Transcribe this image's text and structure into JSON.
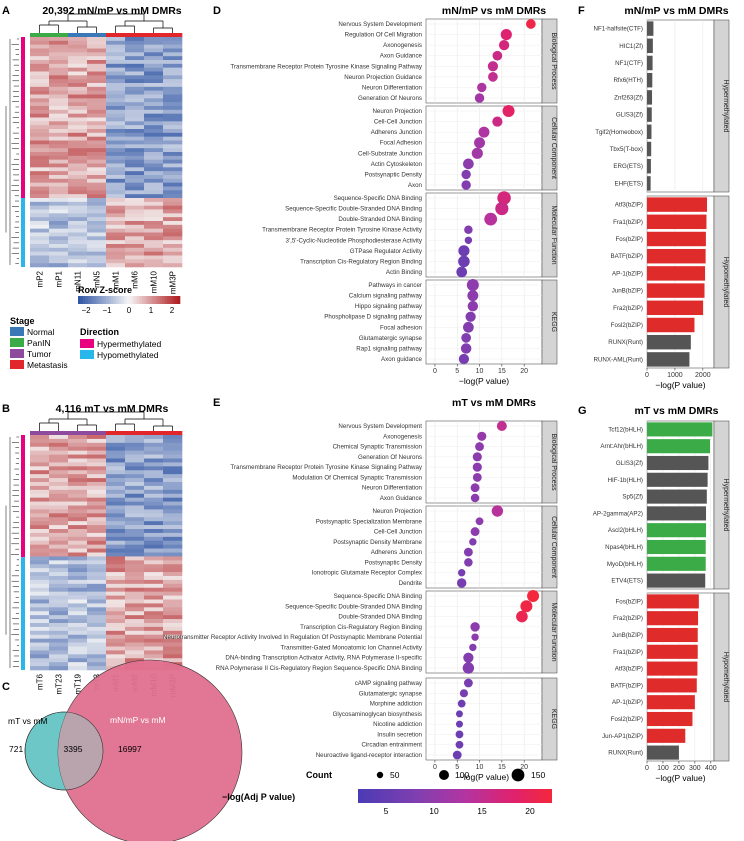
{
  "panel_labels": [
    "A",
    "B",
    "C",
    "D",
    "E",
    "F",
    "G"
  ],
  "colors": {
    "red": "#e2272b",
    "green": "#3aab47",
    "blue": "#3a78b8",
    "purple": "#8e4a9c",
    "hyper": "#e8007e",
    "hypo": "#29b6ea",
    "bar_red": "#e02b2b",
    "bar_green": "#3aab47",
    "bar_gray": "#555555",
    "venn_left": "#6cc7c6",
    "venn_right": "#e0708f",
    "venn_overlap": "#b9a3ad",
    "scale": [
      "#4b3bb5",
      "#7f3fb0",
      "#b235a2",
      "#e0216d",
      "#f3283c"
    ]
  },
  "heatmapA": {
    "title": "20,392 mN/mP vs mM DMRs",
    "columns": [
      "mP2",
      "mP1",
      "mN11",
      "mN5",
      "mM1",
      "mM6",
      "mM10",
      "mM3P"
    ],
    "stage_colors": [
      "#3aab47",
      "#3aab47",
      "#3a78b8",
      "#3a78b8",
      "#e2272b",
      "#e2272b",
      "#e2272b",
      "#e2272b"
    ]
  },
  "heatmapB": {
    "title": "4,116 mT vs mM DMRs",
    "columns": [
      "mT6",
      "mT23",
      "mT19",
      "mT3",
      "mM1",
      "mM6",
      "mM10",
      "mM3P"
    ],
    "stage_colors": [
      "#8e4a9c",
      "#8e4a9c",
      "#8e4a9c",
      "#8e4a9c",
      "#e2272b",
      "#e2272b",
      "#e2272b",
      "#e2272b"
    ]
  },
  "legend": {
    "zscore_title": "Row Z-score",
    "zscore_ticks": [
      "−2",
      "−1",
      "0",
      "1",
      "2"
    ],
    "stage_title": "Stage",
    "stages": [
      {
        "label": "Normal",
        "color": "#3a78b8"
      },
      {
        "label": "PanIN",
        "color": "#3aab47"
      },
      {
        "label": "Tumor",
        "color": "#8e4a9c"
      },
      {
        "label": "Metastasis",
        "color": "#e2272b"
      }
    ],
    "direction_title": "Direction",
    "directions": [
      {
        "label": "Hypermethylated",
        "color": "#e8007e"
      },
      {
        "label": "Hypomethylated",
        "color": "#29b6ea"
      }
    ]
  },
  "venn": {
    "left_label": "mT vs mM",
    "right_label": "mN/mP vs mM",
    "left_only": "721",
    "overlap": "3395",
    "right_only": "16997"
  },
  "bottom_legend": {
    "count_title": "Count",
    "count_values": [
      "50",
      "100",
      "150"
    ],
    "color_title": "−log(Adj P value)",
    "color_ticks": [
      "5",
      "10",
      "15",
      "20"
    ]
  },
  "chart_data": [
    {
      "panel": "D",
      "type": "scatter",
      "title": "mN/mP vs mM DMRs",
      "xlabel": "−log(P value)",
      "xlim": [
        -2,
        24
      ],
      "xticks": [
        0,
        5,
        10,
        15,
        20
      ],
      "facets": [
        {
          "name": "Biological Process",
          "terms": [
            {
              "term": "Nervous System Development",
              "x": 21.5,
              "count": 60,
              "adj": 20
            },
            {
              "term": "Regulation Of Cell Migration",
              "x": 16.0,
              "count": 90,
              "adj": 16
            },
            {
              "term": "Axonogenesis",
              "x": 15.5,
              "count": 70,
              "adj": 15
            },
            {
              "term": "Axon Guidance",
              "x": 14.0,
              "count": 60,
              "adj": 14
            },
            {
              "term": "Transmembrane Receptor Protein Tyrosine Kinase Signaling Pathway",
              "x": 13.0,
              "count": 70,
              "adj": 13
            },
            {
              "term": "Neuron Projection Guidance",
              "x": 13.0,
              "count": 60,
              "adj": 13
            },
            {
              "term": "Neuron Differentiation",
              "x": 10.5,
              "count": 55,
              "adj": 11
            },
            {
              "term": "Generation Of Neurons",
              "x": 10.0,
              "count": 55,
              "adj": 10
            }
          ]
        },
        {
          "name": "Cellular Component",
          "terms": [
            {
              "term": "Neuron Projection",
              "x": 16.5,
              "count": 110,
              "adj": 17
            },
            {
              "term": "Cell-Cell Junction",
              "x": 14.0,
              "count": 70,
              "adj": 14
            },
            {
              "term": "Adherens Junction",
              "x": 11.0,
              "count": 85,
              "adj": 11
            },
            {
              "term": "Focal Adhesion",
              "x": 10.0,
              "count": 85,
              "adj": 10
            },
            {
              "term": "Cell-Substrate Junction",
              "x": 9.5,
              "count": 90,
              "adj": 10
            },
            {
              "term": "Actin Cytoskeleton",
              "x": 7.5,
              "count": 80,
              "adj": 8
            },
            {
              "term": "Postsynaptic Density",
              "x": 7.0,
              "count": 55,
              "adj": 7
            },
            {
              "term": "Axon",
              "x": 7.0,
              "count": 55,
              "adj": 7
            }
          ]
        },
        {
          "name": "Molecular Function",
          "terms": [
            {
              "term": "Sequence-Specific DNA Binding",
              "x": 15.5,
              "count": 150,
              "adj": 15
            },
            {
              "term": "Sequence-Specific Double-Stranded DNA Binding",
              "x": 15.0,
              "count": 140,
              "adj": 14
            },
            {
              "term": "Double-Stranded DNA Binding",
              "x": 12.5,
              "count": 130,
              "adj": 12
            },
            {
              "term": "Transmembrane Receptor Protein Tyrosine Kinase Activity",
              "x": 7.5,
              "count": 40,
              "adj": 7
            },
            {
              "term": "3',5'-Cyclic-Nucleotide Phosphodiesterase Activity",
              "x": 7.5,
              "count": 25,
              "adj": 6
            },
            {
              "term": "GTPase Regulator Activity",
              "x": 6.5,
              "count": 90,
              "adj": 5
            },
            {
              "term": "Transcription Cis-Regulatory Region Binding",
              "x": 6.5,
              "count": 100,
              "adj": 5
            },
            {
              "term": "Actin Binding",
              "x": 6.0,
              "count": 80,
              "adj": 5
            }
          ]
        },
        {
          "name": "KEGG",
          "terms": [
            {
              "term": "Pathways in cancer",
              "x": 8.5,
              "count": 110,
              "adj": 8
            },
            {
              "term": "Calcium signaling pathway",
              "x": 8.5,
              "count": 85,
              "adj": 8
            },
            {
              "term": "Hippo signaling pathway",
              "x": 8.5,
              "count": 75,
              "adj": 8
            },
            {
              "term": "Phospholipase D signaling pathway",
              "x": 8.0,
              "count": 70,
              "adj": 7
            },
            {
              "term": "Focal adhesion",
              "x": 7.5,
              "count": 80,
              "adj": 7
            },
            {
              "term": "Glutamatergic synapse",
              "x": 7.0,
              "count": 60,
              "adj": 7
            },
            {
              "term": "Rap1 signaling pathway",
              "x": 7.0,
              "count": 75,
              "adj": 7
            },
            {
              "term": "Axon guidance",
              "x": 6.5,
              "count": 70,
              "adj": 6
            }
          ]
        }
      ]
    },
    {
      "panel": "E",
      "type": "scatter",
      "title": "mT vs mM DMRs",
      "xlabel": "−log(P value)",
      "xlim": [
        -2,
        24
      ],
      "xticks": [
        0,
        5,
        10,
        15,
        20
      ],
      "facets": [
        {
          "name": "Biological Process",
          "terms": [
            {
              "term": "Nervous System Development",
              "x": 15.0,
              "count": 65,
              "adj": 13
            },
            {
              "term": "Axonogenesis",
              "x": 10.5,
              "count": 50,
              "adj": 9
            },
            {
              "term": "Chemical Synaptic Transmission",
              "x": 10.0,
              "count": 45,
              "adj": 8
            },
            {
              "term": "Generation Of Neurons",
              "x": 9.5,
              "count": 50,
              "adj": 8
            },
            {
              "term": "Transmembrane Receptor Protein Tyrosine Kinase Signaling Pathway",
              "x": 9.5,
              "count": 50,
              "adj": 8
            },
            {
              "term": "Modulation Of Chemical Synaptic Transmission",
              "x": 9.5,
              "count": 45,
              "adj": 8
            },
            {
              "term": "Neuron Differentiation",
              "x": 9.0,
              "count": 45,
              "adj": 8
            },
            {
              "term": "Axon Guidance",
              "x": 9.0,
              "count": 40,
              "adj": 8
            }
          ]
        },
        {
          "name": "Cellular Component",
          "terms": [
            {
              "term": "Neuron Projection",
              "x": 14.0,
              "count": 95,
              "adj": 12
            },
            {
              "term": "Postsynaptic Specialization Membrane",
              "x": 10.0,
              "count": 30,
              "adj": 8
            },
            {
              "term": "Cell-Cell Junction",
              "x": 9.0,
              "count": 45,
              "adj": 8
            },
            {
              "term": "Postsynaptic Density Membrane",
              "x": 8.5,
              "count": 25,
              "adj": 7
            },
            {
              "term": "Adherens Junction",
              "x": 7.5,
              "count": 45,
              "adj": 7
            },
            {
              "term": "Postsynaptic Density",
              "x": 7.5,
              "count": 40,
              "adj": 7
            },
            {
              "term": "Ionotropic Glutamate Receptor Complex",
              "x": 6.0,
              "count": 25,
              "adj": 6
            },
            {
              "term": "Dendrite",
              "x": 6.0,
              "count": 55,
              "adj": 6
            }
          ]
        },
        {
          "name": "Molecular Function",
          "terms": [
            {
              "term": "Sequence-Specific DNA Binding",
              "x": 22.0,
              "count": 110,
              "adj": 21
            },
            {
              "term": "Sequence-Specific Double-Stranded DNA Binding",
              "x": 20.5,
              "count": 110,
              "adj": 20
            },
            {
              "term": "Double-Stranded DNA Binding",
              "x": 19.5,
              "count": 100,
              "adj": 19
            },
            {
              "term": "Transcription Cis-Regulatory Region Binding",
              "x": 9.0,
              "count": 55,
              "adj": 8
            },
            {
              "term": "Neurotransmitter Receptor Activity Involved In Regulation Of Postsynaptic Membrane Potential",
              "x": 9.0,
              "count": 25,
              "adj": 8
            },
            {
              "term": "Transmitter-Gated Monoatomic Ion Channel Activity",
              "x": 8.5,
              "count": 25,
              "adj": 7
            },
            {
              "term": "DNA-binding Transcription Activator Activity, RNA Polymerase II-specific",
              "x": 7.5,
              "count": 70,
              "adj": 7
            },
            {
              "term": "RNA Polymerase II Cis-Regulatory Region Sequence-Specific DNA Binding",
              "x": 7.5,
              "count": 95,
              "adj": 7
            }
          ]
        },
        {
          "name": "KEGG",
          "terms": [
            {
              "term": "cAMP signaling pathway",
              "x": 7.5,
              "count": 45,
              "adj": 6
            },
            {
              "term": "Glutamatergic synapse",
              "x": 6.5,
              "count": 35,
              "adj": 6
            },
            {
              "term": "Morphine addiction",
              "x": 6.0,
              "count": 30,
              "adj": 5
            },
            {
              "term": "Glycosaminoglycan biosynthesis",
              "x": 5.5,
              "count": 20,
              "adj": 5
            },
            {
              "term": "Nicotine addiction",
              "x": 5.5,
              "count": 20,
              "adj": 5
            },
            {
              "term": "Insulin secretion",
              "x": 5.5,
              "count": 30,
              "adj": 5
            },
            {
              "term": "Circadian entrainment",
              "x": 5.5,
              "count": 30,
              "adj": 5
            },
            {
              "term": "Neuroactive ligand-receptor interaction",
              "x": 5.0,
              "count": 45,
              "adj": 5
            }
          ]
        }
      ]
    },
    {
      "panel": "F",
      "type": "bar",
      "title": "mN/mP vs mM DMRs",
      "xlabel": "−log(P value)",
      "xlim": [
        0,
        2400
      ],
      "xticks": [
        0,
        1000,
        2000
      ],
      "facets": [
        {
          "name": "Hypermethylated",
          "bars": [
            {
              "label": "NF1-halfsite(CTF)",
              "value": 230,
              "color": "gray"
            },
            {
              "label": "HIC1(Zf)",
              "value": 210,
              "color": "gray"
            },
            {
              "label": "NF1(CTF)",
              "value": 200,
              "color": "gray"
            },
            {
              "label": "Rfx6(HTH)",
              "value": 190,
              "color": "gray"
            },
            {
              "label": "Znf263(Zf)",
              "value": 180,
              "color": "gray"
            },
            {
              "label": "GLIS3(Zf)",
              "value": 170,
              "color": "gray"
            },
            {
              "label": "Tgif2(Homeobox)",
              "value": 160,
              "color": "gray"
            },
            {
              "label": "Tbx5(T-box)",
              "value": 150,
              "color": "gray"
            },
            {
              "label": "ERG(ETS)",
              "value": 140,
              "color": "gray"
            },
            {
              "label": "EHF(ETS)",
              "value": 130,
              "color": "gray"
            }
          ]
        },
        {
          "name": "Hypomethylated",
          "bars": [
            {
              "label": "Atf3(bZIP)",
              "value": 2150,
              "color": "red"
            },
            {
              "label": "Fra1(bZIP)",
              "value": 2130,
              "color": "red"
            },
            {
              "label": "Fos(bZIP)",
              "value": 2110,
              "color": "red"
            },
            {
              "label": "BATF(bZIP)",
              "value": 2100,
              "color": "red"
            },
            {
              "label": "AP-1(bZIP)",
              "value": 2080,
              "color": "red"
            },
            {
              "label": "JunB(bZIP)",
              "value": 2060,
              "color": "red"
            },
            {
              "label": "Fra2(bZIP)",
              "value": 2010,
              "color": "red"
            },
            {
              "label": "Fosl2(bZIP)",
              "value": 1700,
              "color": "red"
            },
            {
              "label": "RUNX(Runt)",
              "value": 1570,
              "color": "gray"
            },
            {
              "label": "RUNX-AML(Runt)",
              "value": 1520,
              "color": "gray"
            }
          ]
        }
      ]
    },
    {
      "panel": "G",
      "type": "bar",
      "title": "mT vs mM DMRs",
      "xlabel": "−log(P value)",
      "xlim": [
        0,
        420
      ],
      "xticks": [
        0,
        100,
        200,
        300,
        400
      ],
      "facets": [
        {
          "name": "Hypermethylated",
          "bars": [
            {
              "label": "Tcf12(bHLH)",
              "value": 410,
              "color": "green"
            },
            {
              "label": "Arnt:Ahr(bHLH)",
              "value": 395,
              "color": "green"
            },
            {
              "label": "GLIS3(Zf)",
              "value": 385,
              "color": "gray"
            },
            {
              "label": "HIF-1b(HLH)",
              "value": 380,
              "color": "gray"
            },
            {
              "label": "Sp5(Zf)",
              "value": 375,
              "color": "gray"
            },
            {
              "label": "AP-2gamma(AP2)",
              "value": 370,
              "color": "gray"
            },
            {
              "label": "Ascl2(bHLH)",
              "value": 370,
              "color": "green"
            },
            {
              "label": "Npas4(bHLH)",
              "value": 368,
              "color": "green"
            },
            {
              "label": "MyoD(bHLH)",
              "value": 368,
              "color": "green"
            },
            {
              "label": "ETV4(ETS)",
              "value": 365,
              "color": "gray"
            }
          ]
        },
        {
          "name": "Hypomethylated",
          "bars": [
            {
              "label": "Fos(bZIP)",
              "value": 325,
              "color": "red"
            },
            {
              "label": "Fra2(bZIP)",
              "value": 320,
              "color": "red"
            },
            {
              "label": "JunB(bZIP)",
              "value": 318,
              "color": "red"
            },
            {
              "label": "Fra1(bZIP)",
              "value": 318,
              "color": "red"
            },
            {
              "label": "Atf3(bZIP)",
              "value": 316,
              "color": "red"
            },
            {
              "label": "BATF(bZIP)",
              "value": 312,
              "color": "red"
            },
            {
              "label": "AP-1(bZIP)",
              "value": 300,
              "color": "red"
            },
            {
              "label": "Fosl2(bZIP)",
              "value": 285,
              "color": "red"
            },
            {
              "label": "Jun-AP1(bZIP)",
              "value": 240,
              "color": "red"
            },
            {
              "label": "RUNX(Runt)",
              "value": 200,
              "color": "gray"
            }
          ]
        }
      ]
    }
  ]
}
